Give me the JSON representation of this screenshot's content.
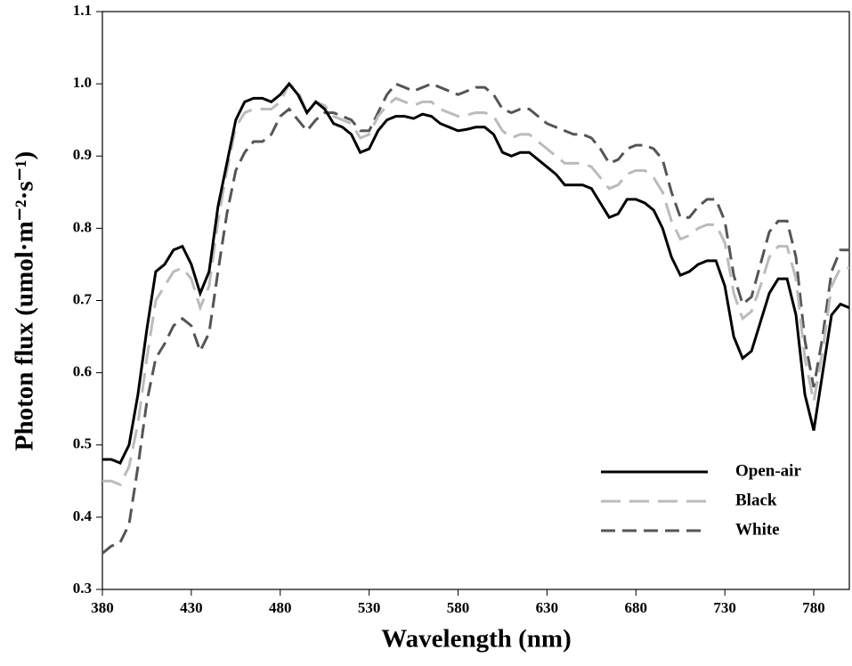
{
  "chart_data": {
    "type": "line",
    "xlabel": "Wavelength (nm)",
    "ylabel": "Photon flux (umol·m⁻²·s⁻¹)",
    "x": [
      380,
      385,
      390,
      395,
      400,
      405,
      410,
      415,
      420,
      425,
      430,
      435,
      440,
      445,
      450,
      455,
      460,
      465,
      470,
      475,
      480,
      485,
      490,
      495,
      500,
      505,
      510,
      515,
      520,
      525,
      530,
      535,
      540,
      545,
      550,
      555,
      560,
      565,
      570,
      575,
      580,
      585,
      590,
      595,
      600,
      605,
      610,
      615,
      620,
      625,
      630,
      635,
      640,
      645,
      650,
      655,
      660,
      665,
      670,
      675,
      680,
      685,
      690,
      695,
      700,
      705,
      710,
      715,
      720,
      725,
      730,
      735,
      740,
      745,
      750,
      755,
      760,
      765,
      770,
      775,
      780,
      785,
      790,
      795,
      800
    ],
    "series": [
      {
        "name": "Open-air",
        "color": "#000000",
        "dash": "solid",
        "values": [
          0.48,
          0.48,
          0.475,
          0.5,
          0.57,
          0.66,
          0.74,
          0.75,
          0.77,
          0.775,
          0.75,
          0.71,
          0.74,
          0.83,
          0.89,
          0.95,
          0.975,
          0.98,
          0.98,
          0.975,
          0.985,
          1.0,
          0.985,
          0.96,
          0.975,
          0.965,
          0.945,
          0.94,
          0.93,
          0.905,
          0.91,
          0.935,
          0.95,
          0.955,
          0.955,
          0.952,
          0.958,
          0.955,
          0.945,
          0.94,
          0.935,
          0.937,
          0.94,
          0.94,
          0.93,
          0.905,
          0.9,
          0.905,
          0.905,
          0.895,
          0.885,
          0.875,
          0.86,
          0.86,
          0.86,
          0.855,
          0.835,
          0.815,
          0.82,
          0.84,
          0.84,
          0.835,
          0.825,
          0.8,
          0.76,
          0.735,
          0.74,
          0.75,
          0.755,
          0.755,
          0.72,
          0.65,
          0.62,
          0.63,
          0.67,
          0.71,
          0.73,
          0.73,
          0.68,
          0.57,
          0.52,
          0.6,
          0.68,
          0.695,
          0.69
        ]
      },
      {
        "name": "Black",
        "color": "#bbbbbb",
        "dash": "long-dash",
        "values": [
          0.45,
          0.45,
          0.445,
          0.47,
          0.53,
          0.62,
          0.7,
          0.72,
          0.74,
          0.745,
          0.73,
          0.69,
          0.72,
          0.81,
          0.88,
          0.94,
          0.96,
          0.965,
          0.965,
          0.965,
          0.975,
          1.0,
          0.99,
          0.96,
          0.975,
          0.97,
          0.955,
          0.95,
          0.945,
          0.925,
          0.93,
          0.955,
          0.97,
          0.98,
          0.975,
          0.97,
          0.975,
          0.975,
          0.965,
          0.96,
          0.955,
          0.957,
          0.96,
          0.96,
          0.955,
          0.935,
          0.925,
          0.93,
          0.93,
          0.92,
          0.91,
          0.9,
          0.89,
          0.89,
          0.89,
          0.885,
          0.87,
          0.855,
          0.86,
          0.875,
          0.88,
          0.88,
          0.87,
          0.85,
          0.81,
          0.785,
          0.79,
          0.8,
          0.805,
          0.805,
          0.78,
          0.71,
          0.675,
          0.685,
          0.72,
          0.76,
          0.775,
          0.775,
          0.73,
          0.62,
          0.56,
          0.63,
          0.72,
          0.745,
          0.745
        ]
      },
      {
        "name": "White",
        "color": "#555555",
        "dash": "dash",
        "values": [
          0.35,
          0.36,
          0.365,
          0.39,
          0.47,
          0.56,
          0.62,
          0.64,
          0.665,
          0.675,
          0.665,
          0.63,
          0.655,
          0.74,
          0.82,
          0.88,
          0.905,
          0.92,
          0.92,
          0.93,
          0.955,
          0.965,
          0.95,
          0.935,
          0.95,
          0.96,
          0.96,
          0.955,
          0.95,
          0.935,
          0.935,
          0.96,
          0.985,
          1.0,
          0.995,
          0.99,
          0.995,
          1.0,
          0.995,
          0.99,
          0.985,
          0.99,
          0.995,
          0.995,
          0.985,
          0.965,
          0.96,
          0.965,
          0.965,
          0.955,
          0.945,
          0.94,
          0.935,
          0.93,
          0.93,
          0.925,
          0.91,
          0.89,
          0.895,
          0.91,
          0.915,
          0.915,
          0.91,
          0.895,
          0.85,
          0.815,
          0.815,
          0.83,
          0.84,
          0.84,
          0.81,
          0.735,
          0.695,
          0.705,
          0.75,
          0.795,
          0.81,
          0.81,
          0.76,
          0.645,
          0.58,
          0.65,
          0.74,
          0.77,
          0.77
        ]
      }
    ],
    "xlim": [
      380,
      800
    ],
    "xticks": [
      380,
      430,
      480,
      530,
      580,
      630,
      680,
      730,
      780
    ],
    "ylim": [
      0.3,
      1.1
    ],
    "yticks": [
      0.3,
      0.4,
      0.5,
      0.6,
      0.7,
      0.8,
      0.9,
      {
        "value": 1.0,
        "label": "1.0"
      },
      1.1
    ],
    "legend": "lower right",
    "grid": false
  }
}
